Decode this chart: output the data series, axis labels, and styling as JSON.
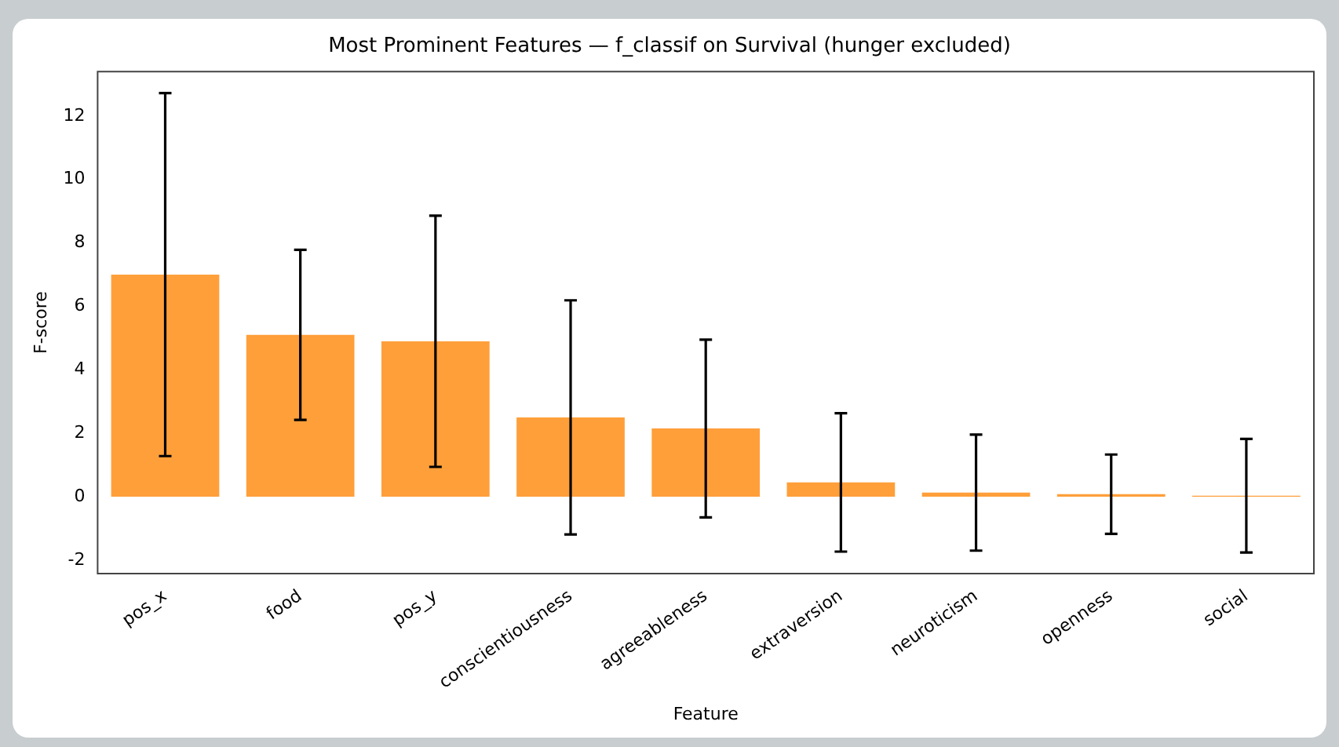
{
  "chart_data": {
    "type": "bar",
    "title": "Most Prominent Features — f_classif on Survival (hunger excluded)",
    "xlabel": "Feature",
    "ylabel": "F-score",
    "categories": [
      "pos_x",
      "food",
      "pos_y",
      "conscientiousness",
      "agreeableness",
      "extraversion",
      "neuroticism",
      "openness",
      "social"
    ],
    "values": [
      7.0,
      5.1,
      4.9,
      2.5,
      2.15,
      0.45,
      0.13,
      0.08,
      0.03
    ],
    "errors": [
      5.72,
      2.68,
      3.96,
      3.69,
      2.8,
      2.18,
      1.83,
      1.25,
      1.79
    ],
    "color": "#ff9f3a",
    "ylim": [
      -2.42,
      13.4
    ],
    "yticks": [
      -2,
      0,
      2,
      4,
      6,
      8,
      10,
      12
    ],
    "grid": false
  }
}
